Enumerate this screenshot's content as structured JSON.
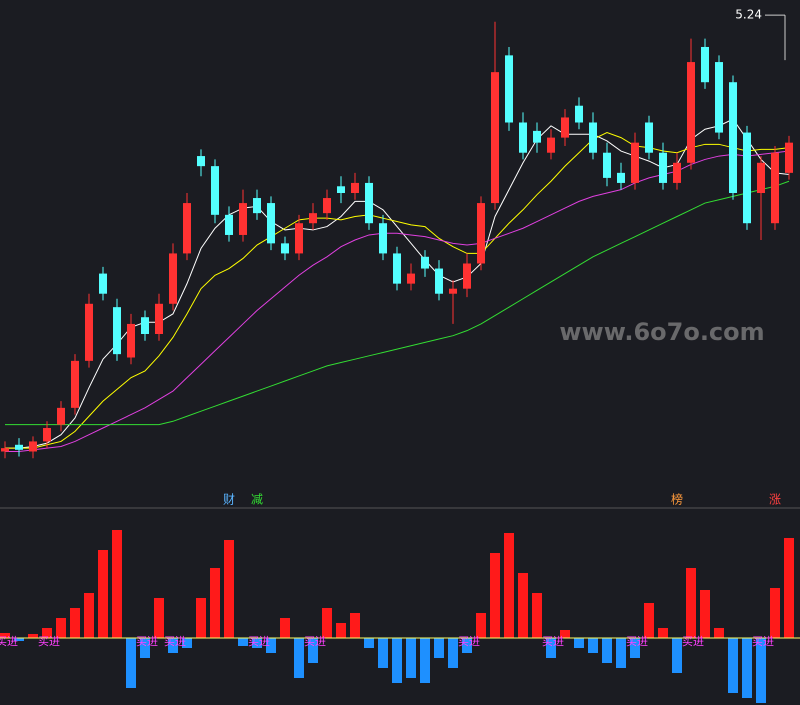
{
  "watermark": "www.6o7o.com",
  "chart_data": [
    {
      "type": "candlestick",
      "ylim": [
        2.5,
        5.3
      ],
      "up_color": "#ff3232",
      "down_color": "#54ffff",
      "high_label": 5.24,
      "open": [
        2.64,
        2.68,
        2.64,
        2.7,
        2.8,
        2.9,
        3.18,
        3.7,
        3.5,
        3.2,
        3.44,
        3.34,
        3.52,
        3.82,
        4.4,
        4.34,
        4.05,
        3.93,
        4.15,
        4.12,
        3.88,
        3.82,
        4.0,
        4.06,
        4.22,
        4.18,
        4.24,
        4.0,
        3.82,
        3.64,
        3.8,
        3.73,
        3.58,
        3.61,
        3.76,
        4.12,
        5.0,
        4.6,
        4.55,
        4.42,
        4.51,
        4.7,
        4.6,
        4.42,
        4.3,
        4.24,
        4.6,
        4.42,
        4.24,
        4.36,
        5.05,
        4.96,
        4.84,
        4.54,
        4.18,
        4.0,
        4.3
      ],
      "high": [
        2.7,
        2.72,
        2.73,
        2.82,
        2.94,
        3.22,
        3.58,
        3.74,
        3.55,
        3.46,
        3.48,
        3.58,
        3.88,
        4.18,
        4.44,
        4.38,
        4.1,
        4.2,
        4.2,
        4.16,
        3.92,
        4.05,
        4.12,
        4.2,
        4.28,
        4.3,
        4.28,
        4.05,
        3.86,
        3.76,
        3.84,
        3.78,
        3.66,
        3.82,
        4.16,
        5.2,
        5.05,
        4.66,
        4.6,
        4.56,
        4.68,
        4.75,
        4.66,
        4.48,
        4.36,
        4.54,
        4.64,
        4.48,
        4.42,
        5.1,
        5.1,
        5.0,
        4.88,
        4.58,
        4.4,
        4.46,
        4.52
      ],
      "low": [
        2.6,
        2.61,
        2.6,
        2.66,
        2.76,
        2.86,
        3.14,
        3.54,
        3.18,
        3.16,
        3.3,
        3.3,
        3.48,
        3.78,
        4.28,
        4.0,
        3.89,
        3.89,
        4.02,
        3.84,
        3.78,
        3.78,
        3.96,
        4.02,
        4.12,
        4.14,
        3.96,
        3.78,
        3.6,
        3.6,
        3.68,
        3.54,
        3.4,
        3.56,
        3.72,
        4.08,
        4.55,
        4.38,
        4.42,
        4.38,
        4.46,
        4.56,
        4.38,
        4.22,
        4.2,
        4.2,
        4.38,
        4.2,
        4.2,
        4.32,
        4.8,
        4.5,
        4.14,
        3.96,
        3.9,
        3.96,
        4.26
      ],
      "close": [
        2.66,
        2.65,
        2.7,
        2.78,
        2.9,
        3.18,
        3.52,
        3.58,
        3.22,
        3.4,
        3.34,
        3.52,
        3.82,
        4.12,
        4.34,
        4.05,
        3.93,
        4.12,
        4.06,
        3.88,
        3.82,
        4.0,
        4.06,
        4.15,
        4.18,
        4.24,
        4.0,
        3.82,
        3.64,
        3.7,
        3.73,
        3.58,
        3.61,
        3.76,
        4.12,
        4.9,
        4.6,
        4.42,
        4.48,
        4.51,
        4.63,
        4.6,
        4.42,
        4.27,
        4.24,
        4.48,
        4.42,
        4.24,
        4.36,
        4.96,
        4.84,
        4.54,
        4.18,
        4.0,
        4.36,
        4.42,
        4.48
      ],
      "lines": [
        {
          "color": "#ffffff",
          "values": [
            2.66,
            2.66,
            2.67,
            2.69,
            2.74,
            2.84,
            3.02,
            3.19,
            3.28,
            3.38,
            3.41,
            3.41,
            3.46,
            3.64,
            3.85,
            3.97,
            4.05,
            4.09,
            4.1,
            4.01,
            3.96,
            3.97,
            3.96,
            3.98,
            4.04,
            4.13,
            4.13,
            4.08,
            3.98,
            3.88,
            3.78,
            3.69,
            3.65,
            3.68,
            3.76,
            4.04,
            4.2,
            4.36,
            4.5,
            4.58,
            4.53,
            4.53,
            4.53,
            4.49,
            4.43,
            4.4,
            4.37,
            4.33,
            4.35,
            4.5,
            4.56,
            4.58,
            4.62,
            4.5,
            4.38,
            4.3,
            4.29
          ]
        },
        {
          "color": "#ffff00",
          "values": [
            2.66,
            2.66,
            2.66,
            2.68,
            2.7,
            2.76,
            2.85,
            2.94,
            3.01,
            3.08,
            3.12,
            3.21,
            3.32,
            3.46,
            3.61,
            3.69,
            3.73,
            3.79,
            3.87,
            3.92,
            3.97,
            4.02,
            4.03,
            4.03,
            4.02,
            4.04,
            4.05,
            4.03,
            4.01,
            3.99,
            3.98,
            3.91,
            3.86,
            3.82,
            3.82,
            3.91,
            4.0,
            4.08,
            4.17,
            4.25,
            4.34,
            4.42,
            4.5,
            4.54,
            4.51,
            4.46,
            4.45,
            4.43,
            4.42,
            4.45,
            4.47,
            4.47,
            4.45,
            4.43,
            4.44,
            4.44,
            4.45
          ]
        },
        {
          "color": "#e040e0",
          "values": [
            2.64,
            2.64,
            2.65,
            2.66,
            2.67,
            2.7,
            2.74,
            2.78,
            2.82,
            2.86,
            2.9,
            2.95,
            3.0,
            3.08,
            3.16,
            3.24,
            3.32,
            3.4,
            3.48,
            3.55,
            3.62,
            3.69,
            3.75,
            3.8,
            3.86,
            3.9,
            3.93,
            3.94,
            3.94,
            3.93,
            3.92,
            3.9,
            3.88,
            3.87,
            3.88,
            3.91,
            3.94,
            3.97,
            4.01,
            4.05,
            4.09,
            4.13,
            4.16,
            4.18,
            4.2,
            4.24,
            4.27,
            4.29,
            4.31,
            4.35,
            4.38,
            4.4,
            4.41,
            4.4,
            4.41,
            4.42,
            4.43
          ]
        },
        {
          "color": "#33dd33",
          "values": [
            2.8,
            2.8,
            2.8,
            2.8,
            2.8,
            2.8,
            2.8,
            2.8,
            2.8,
            2.8,
            2.8,
            2.8,
            2.82,
            2.85,
            2.88,
            2.91,
            2.94,
            2.97,
            3.0,
            3.03,
            3.06,
            3.09,
            3.12,
            3.15,
            3.17,
            3.19,
            3.21,
            3.23,
            3.25,
            3.27,
            3.29,
            3.31,
            3.33,
            3.36,
            3.4,
            3.45,
            3.5,
            3.55,
            3.6,
            3.65,
            3.7,
            3.75,
            3.8,
            3.84,
            3.88,
            3.92,
            3.96,
            4.0,
            4.04,
            4.08,
            4.12,
            4.14,
            4.16,
            4.18,
            4.2,
            4.22,
            4.25
          ]
        }
      ],
      "event_labels": [
        null,
        null,
        null,
        null,
        null,
        null,
        null,
        null,
        null,
        null,
        null,
        null,
        null,
        null,
        null,
        null,
        {
          "text": "财",
          "color": "#5ab4ff"
        },
        null,
        {
          "text": "减",
          "color": "#33dd33"
        },
        null,
        null,
        null,
        null,
        null,
        null,
        null,
        null,
        null,
        null,
        null,
        null,
        null,
        null,
        null,
        null,
        null,
        null,
        null,
        null,
        null,
        null,
        null,
        null,
        null,
        null,
        null,
        null,
        null,
        {
          "text": "榜",
          "color": "#ff9a3c"
        },
        null,
        null,
        null,
        null,
        null,
        null,
        {
          "text": "涨",
          "color": "#ff4040"
        },
        null
      ]
    },
    {
      "type": "bar",
      "ylim": [
        -67,
        128
      ],
      "up_color": "#ff1a1a",
      "down_color": "#1e90ff",
      "values": [
        5,
        -3,
        4,
        10,
        20,
        30,
        45,
        88,
        108,
        -50,
        -20,
        40,
        -15,
        -10,
        40,
        70,
        98,
        -8,
        -10,
        -15,
        20,
        -40,
        -25,
        30,
        15,
        25,
        -10,
        -30,
        -45,
        -40,
        -45,
        -20,
        -30,
        -15,
        25,
        85,
        105,
        65,
        45,
        -20,
        8,
        -10,
        -15,
        -25,
        -30,
        -20,
        35,
        10,
        -35,
        70,
        48,
        10,
        -55,
        -60,
        -65,
        50,
        100
      ],
      "signal_labels": [
        "买进",
        null,
        null,
        "买进",
        null,
        null,
        null,
        null,
        null,
        null,
        "买进",
        null,
        "买进",
        null,
        null,
        null,
        null,
        null,
        "买进",
        null,
        null,
        null,
        "买进",
        null,
        null,
        null,
        null,
        null,
        null,
        null,
        null,
        null,
        null,
        "买进",
        null,
        null,
        null,
        null,
        null,
        "买进",
        null,
        null,
        null,
        null,
        null,
        "买进",
        null,
        null,
        null,
        "买进",
        null,
        null,
        null,
        null,
        "买进",
        null,
        null
      ]
    }
  ]
}
